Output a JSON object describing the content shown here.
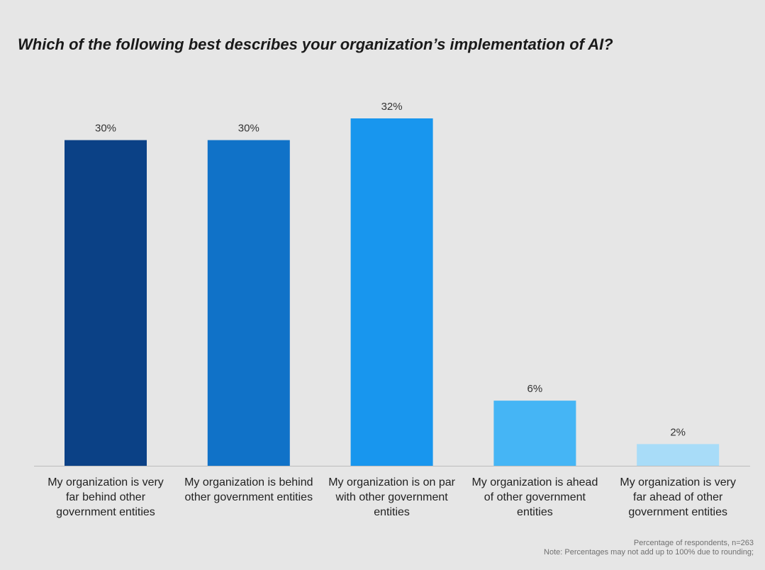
{
  "chart_data": {
    "type": "bar",
    "title": "Which of the following best describes your organization’s implementation of AI?",
    "categories": [
      [
        "My organization is very",
        "far behind other",
        "government entities"
      ],
      [
        "My organization is behind",
        "other government entities"
      ],
      [
        "My organization is on par",
        "with other government",
        "entities"
      ],
      [
        "My organization is ahead",
        "of other government",
        "entities"
      ],
      [
        "My organization is very",
        "far ahead of other",
        "government entities"
      ]
    ],
    "values": [
      30,
      30,
      32,
      6,
      2
    ],
    "value_labels": [
      "30%",
      "30%",
      "32%",
      "6%",
      "2%"
    ],
    "colors": [
      "#0b4186",
      "#1072c8",
      "#1896ee",
      "#45b5f5",
      "#a8dcf8"
    ],
    "xlabel": "",
    "ylabel": "",
    "ylim": [
      0,
      32
    ],
    "grid": false,
    "legend": "none"
  },
  "footnotes": {
    "line1": "Percentage of respondents, n=263",
    "line2": "Note: Percentages may not add up to 100% due to rounding;"
  }
}
